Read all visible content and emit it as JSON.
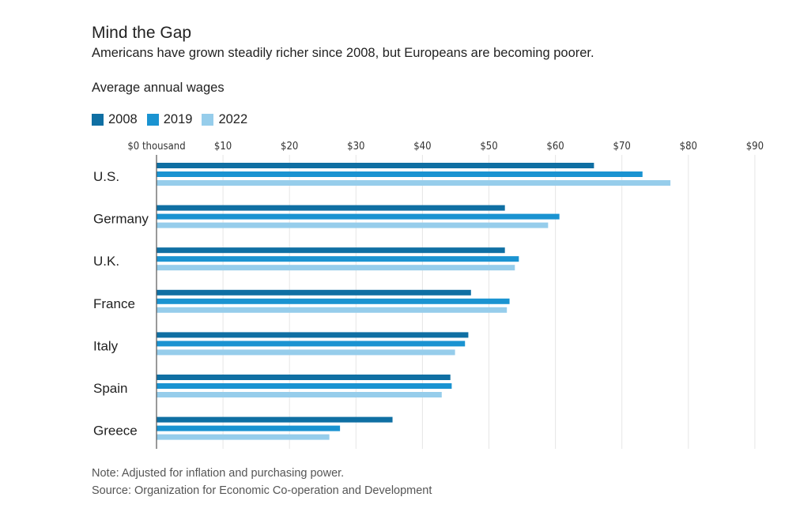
{
  "header": {
    "title": "Mind the Gap",
    "subtitle": "Americans have grown steadily richer since 2008, but Europeans are becoming poorer.",
    "ylabel": "Average annual wages"
  },
  "legend": [
    {
      "label": "2008",
      "color": "#0f6fa3"
    },
    {
      "label": "2019",
      "color": "#1a93d1"
    },
    {
      "label": "2022",
      "color": "#96cdeb"
    }
  ],
  "footer": {
    "note": "Note: Adjusted for inflation and purchasing power.",
    "source": "Source: Organization for Economic Co-operation and Development"
  },
  "chart_data": {
    "type": "bar",
    "orientation": "horizontal",
    "title": "Mind the Gap",
    "subtitle": "Americans have grown steadily richer since 2008, but Europeans are becoming poorer.",
    "xlabel": "",
    "ylabel": "Average annual wages",
    "units": "thousand USD",
    "categories": [
      "U.S.",
      "Germany",
      "U.K.",
      "France",
      "Italy",
      "Spain",
      "Greece"
    ],
    "series": [
      {
        "name": "2008",
        "color": "#0f6fa3",
        "values": [
          65.8,
          52.4,
          52.4,
          47.3,
          46.9,
          44.2,
          35.5
        ]
      },
      {
        "name": "2019",
        "color": "#1a93d1",
        "values": [
          73.1,
          60.6,
          54.5,
          53.1,
          46.4,
          44.4,
          27.6
        ]
      },
      {
        "name": "2022",
        "color": "#96cdeb",
        "values": [
          77.3,
          58.9,
          53.9,
          52.7,
          44.9,
          42.9,
          26.0
        ]
      }
    ],
    "xlim": [
      0,
      90
    ],
    "xticks": [
      0,
      10,
      20,
      30,
      40,
      50,
      60,
      70,
      80,
      90
    ],
    "xtick_labels": [
      "$0 thousand",
      "$10",
      "$20",
      "$30",
      "$40",
      "$50",
      "$60",
      "$70",
      "$80",
      "$90"
    ],
    "grid": true,
    "legend_position": "top-left"
  }
}
